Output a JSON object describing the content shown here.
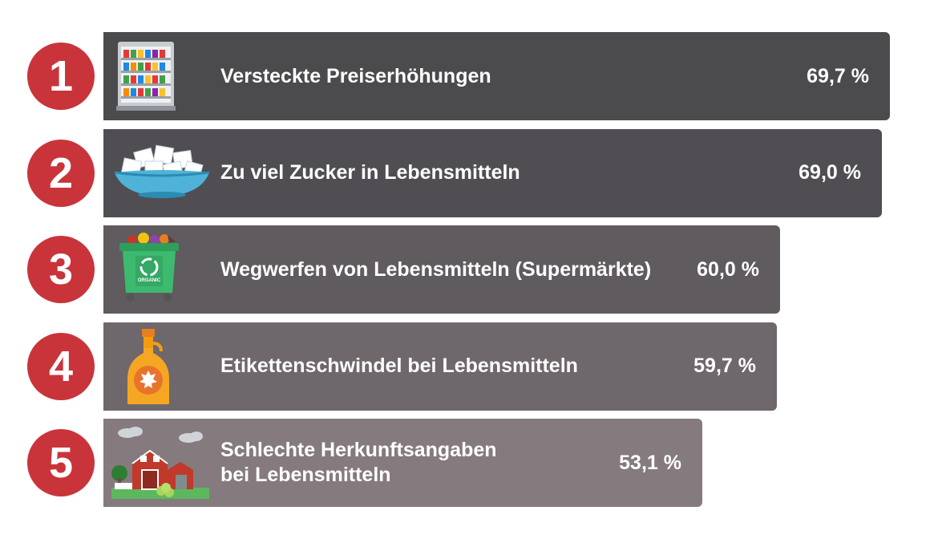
{
  "chart_data": {
    "type": "bar",
    "orientation": "horizontal",
    "categories": [
      "Versteckte Preiserhöhungen",
      "Zu viel Zucker in Lebensmitteln",
      "Wegwerfen von Lebensmitteln (Supermärkte)",
      "Etikettenschwindel bei Lebensmitteln",
      "Schlechte Herkunftsangaben\nbei Lebensmitteln"
    ],
    "values": [
      69.7,
      69.0,
      60.0,
      59.7,
      53.1
    ],
    "value_labels": [
      "69,7 %",
      "69,0 %",
      "60,0 %",
      "59,7 %",
      "53,1 %"
    ],
    "ranks": [
      "1",
      "2",
      "3",
      "4",
      "5"
    ],
    "icons": [
      "supermarket-shelf-icon",
      "sugar-bowl-icon",
      "organic-bin-icon",
      "maple-syrup-bottle-icon",
      "farm-barn-icon"
    ],
    "bar_colors": [
      "#4b4a4d",
      "#504e52",
      "#605b5f",
      "#6e676c",
      "#857a7e"
    ],
    "rank_color": "#c9343a",
    "xlim": [
      0,
      69.7
    ]
  }
}
